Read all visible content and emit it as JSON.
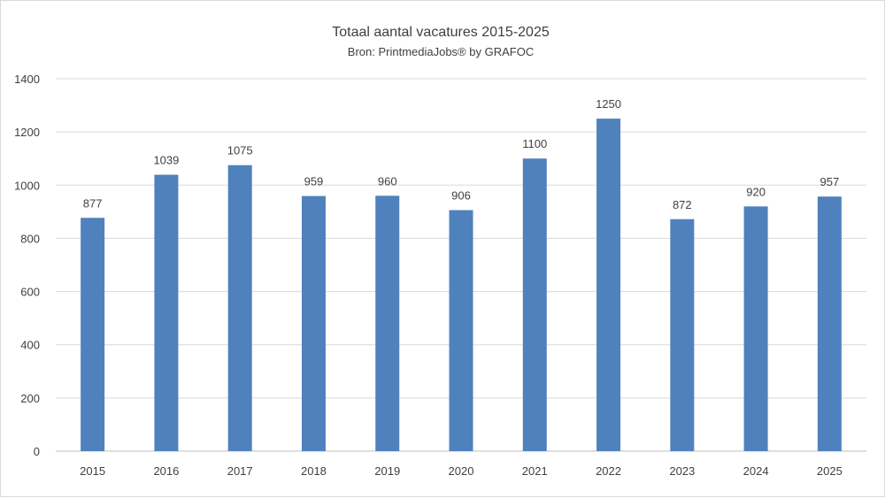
{
  "chart_data": {
    "type": "bar",
    "title": "Totaal aantal vacatures 2015-2025",
    "subtitle": "Bron: PrintmediaJobs® by GRAFOC",
    "categories": [
      "2015",
      "2016",
      "2017",
      "2018",
      "2019",
      "2020",
      "2021",
      "2022",
      "2023",
      "2024",
      "2025"
    ],
    "values": [
      877,
      1039,
      1075,
      959,
      960,
      906,
      1100,
      1250,
      872,
      920,
      957
    ],
    "ylim": [
      0,
      1400
    ],
    "yticks": [
      0,
      200,
      400,
      600,
      800,
      1000,
      1200,
      1400
    ],
    "xlabel": "",
    "ylabel": "",
    "grid": true,
    "legend": "none",
    "bar_color": "#4f81bd",
    "data_labels": true
  }
}
